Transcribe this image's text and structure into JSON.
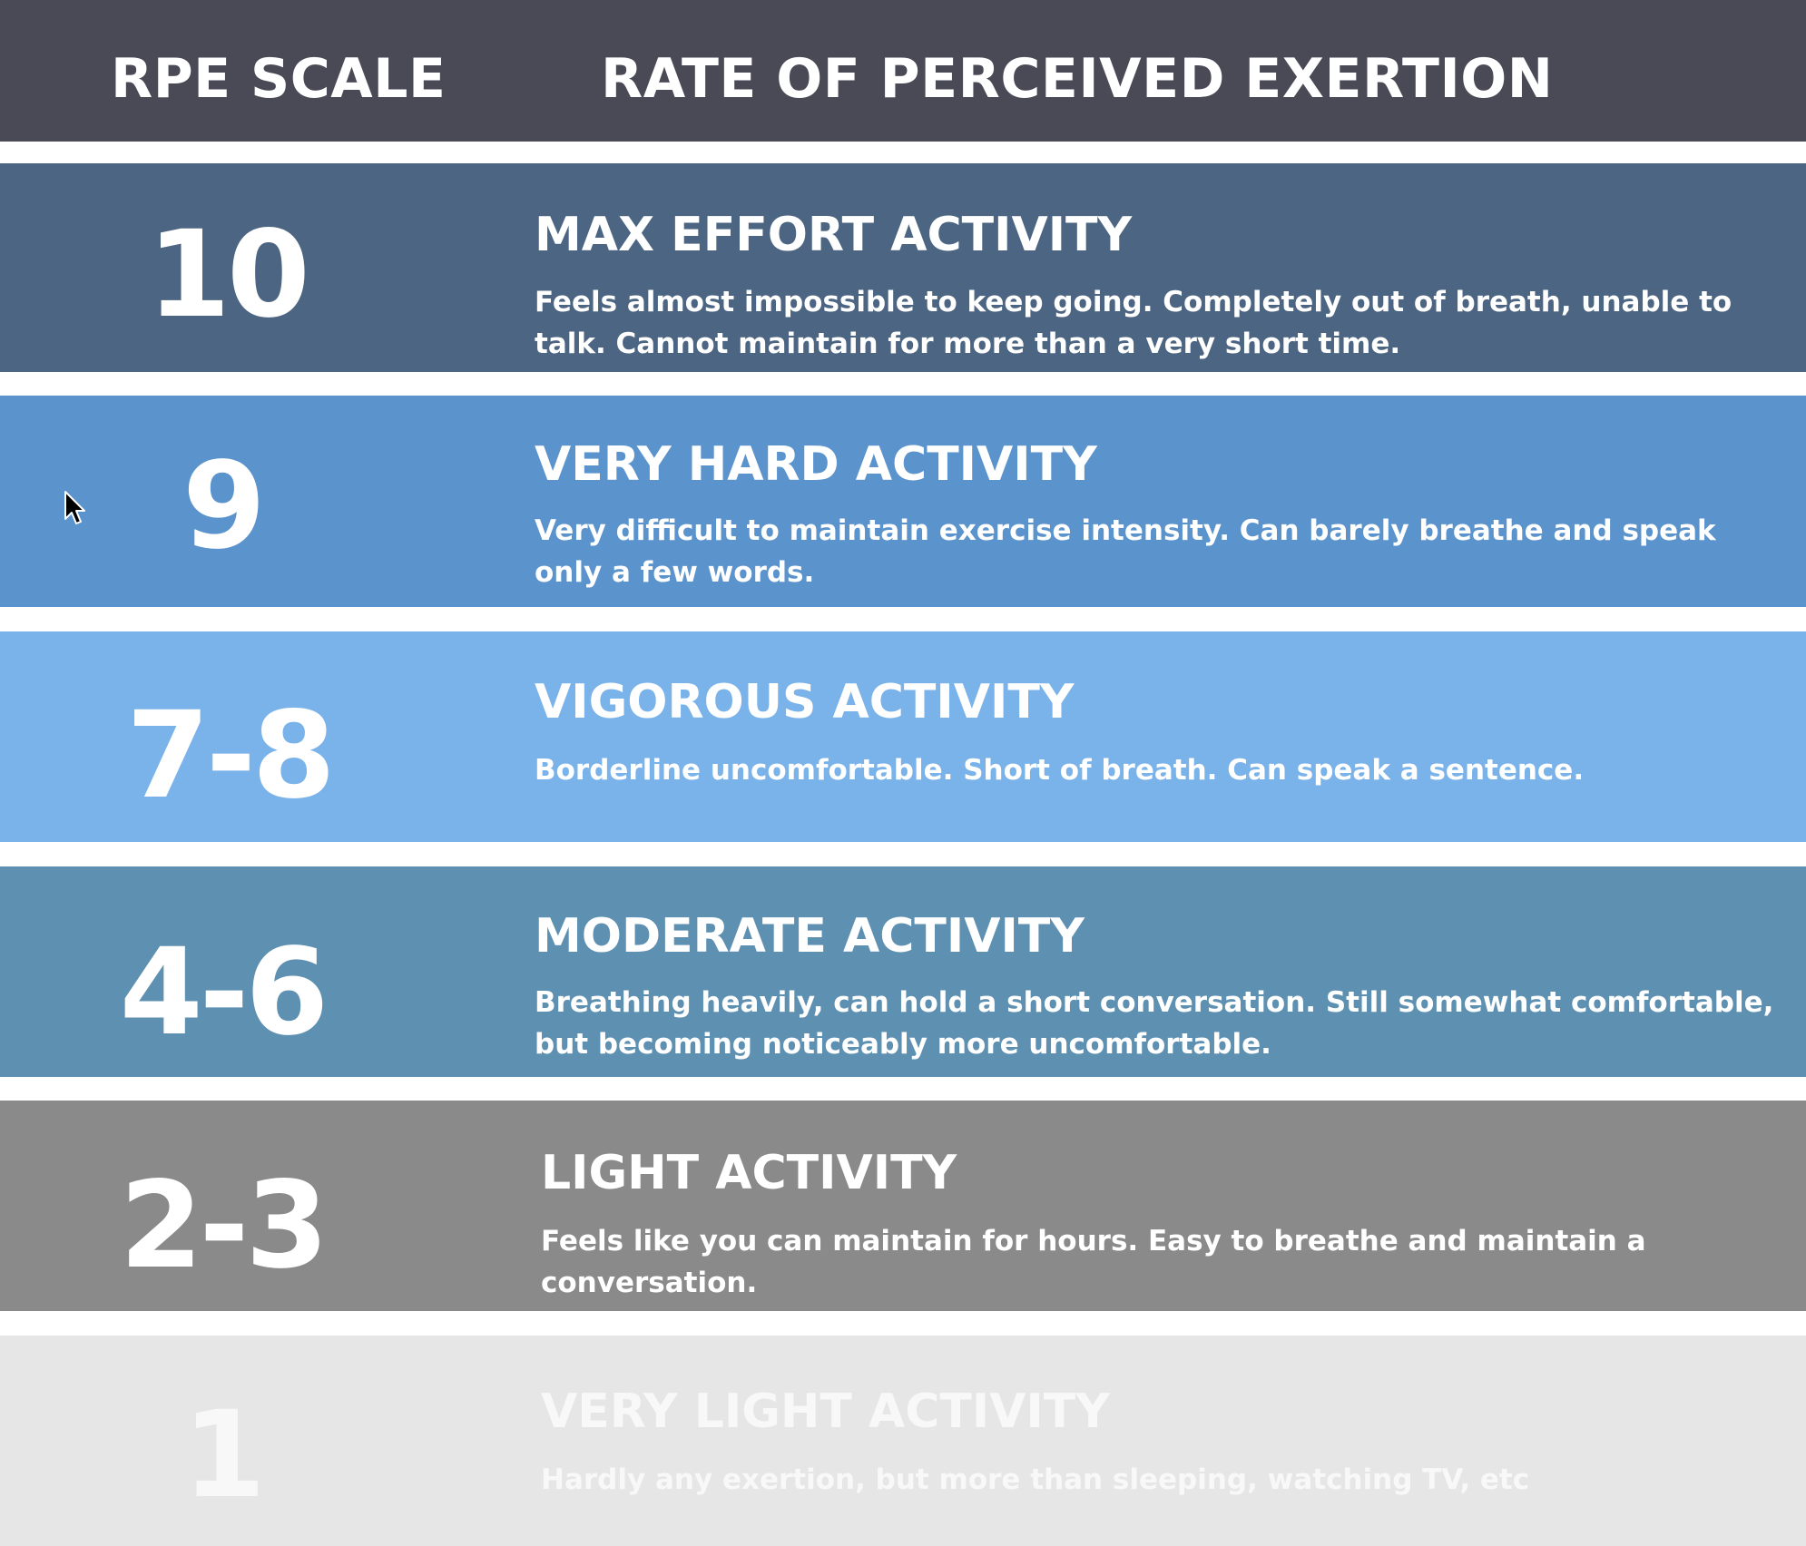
{
  "header": {
    "scale_title": "RPE SCALE",
    "exertion_title": "RATE OF PERCEIVED EXERTION"
  },
  "colors": {
    "header_bg": "#4a4a57",
    "max_effort": "#4c6582",
    "very_hard": "#5b93cc",
    "vigorous": "#7ab2ea",
    "moderate": "#5e90b2",
    "light": "#8a8a8a",
    "very_light": "#e6e6e6"
  },
  "rows": [
    {
      "rating": "10",
      "title": "MAX EFFORT ACTIVITY",
      "description": "Feels almost impossible to keep going. Completely out of breath, unable to talk. Cannot maintain for more than a very short time."
    },
    {
      "rating": "9",
      "title": "VERY HARD ACTIVITY",
      "description": "Very difficult to maintain exercise intensity. Can barely breathe and speak only a few words."
    },
    {
      "rating": "7-8",
      "title": "VIGOROUS ACTIVITY",
      "description": "Borderline uncomfortable. Short of breath. Can speak a sentence."
    },
    {
      "rating": "4-6",
      "title": "MODERATE ACTIVITY",
      "description": "Breathing heavily, can hold a short conversation. Still somewhat comfortable, but becoming noticeably more uncomfortable."
    },
    {
      "rating": "2-3",
      "title": "LIGHT ACTIVITY",
      "description": "Feels like you can maintain for hours. Easy to breathe and maintain a conversation."
    },
    {
      "rating": "1",
      "title": "VERY LIGHT ACTIVITY",
      "description": "Hardly any exertion, but more than sleeping, watching TV, etc"
    }
  ]
}
